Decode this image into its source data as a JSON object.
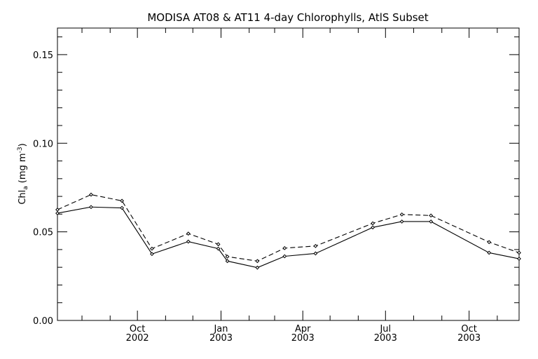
{
  "chart_data": {
    "type": "line",
    "title": "MODISA AT08 & AT11 4-day Chlorophylls, AtlS Subset",
    "xlabel": "",
    "ylabel": "Chl",
    "ylabel_subscript": "a",
    "ylabel_unit": "(mg m",
    "ylabel_exponent": "-3",
    "ylabel_close": ")",
    "xlim": [
      "2002-07-05",
      "2003-11-25"
    ],
    "ylim": [
      0.0,
      0.165
    ],
    "grid": false,
    "legend": "none",
    "y_ticks": [
      {
        "value": 0.0,
        "label": "0.00"
      },
      {
        "value": 0.05,
        "label": "0.05"
      },
      {
        "value": 0.1,
        "label": "0.10"
      },
      {
        "value": 0.15,
        "label": "0.15"
      }
    ],
    "x_ticks": [
      {
        "date": "2002-10-01",
        "month": "Oct",
        "year": "2002"
      },
      {
        "date": "2003-01-01",
        "month": "Jan",
        "year": "2003"
      },
      {
        "date": "2003-04-01",
        "month": "Apr",
        "year": "2003"
      },
      {
        "date": "2003-07-01",
        "month": "Jul",
        "year": "2003"
      },
      {
        "date": "2003-10-01",
        "month": "Oct",
        "year": "2003"
      }
    ],
    "series": [
      {
        "style": "solid",
        "x": [
          "2002-07-05",
          "2002-08-11",
          "2002-09-14",
          "2002-10-17",
          "2002-11-26",
          "2002-12-29",
          "2003-01-08",
          "2003-02-10",
          "2003-03-12",
          "2003-04-15",
          "2003-06-17",
          "2003-07-19",
          "2003-08-20",
          "2003-10-23",
          "2003-11-25"
        ],
        "y": [
          0.0605,
          0.064,
          0.0635,
          0.0375,
          0.0445,
          0.0405,
          0.0335,
          0.0298,
          0.0362,
          0.0378,
          0.0525,
          0.0558,
          0.0558,
          0.0382,
          0.0348
        ]
      },
      {
        "style": "dashed",
        "x": [
          "2002-07-05",
          "2002-08-11",
          "2002-09-14",
          "2002-10-17",
          "2002-11-26",
          "2002-12-29",
          "2003-01-08",
          "2003-02-10",
          "2003-03-12",
          "2003-04-15",
          "2003-06-17",
          "2003-07-19",
          "2003-08-20",
          "2003-10-23",
          "2003-11-25"
        ],
        "y": [
          0.0625,
          0.071,
          0.0675,
          0.0405,
          0.049,
          0.043,
          0.036,
          0.0335,
          0.0408,
          0.042,
          0.0548,
          0.0598,
          0.0592,
          0.0442,
          0.0382
        ]
      }
    ]
  }
}
